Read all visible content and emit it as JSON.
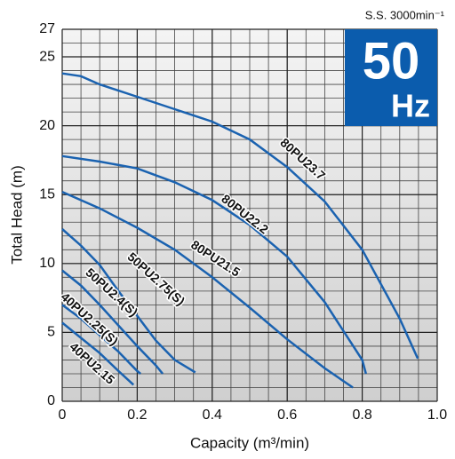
{
  "chart_data": {
    "type": "line",
    "subtitle": "S.S. 3000min⁻¹",
    "badge_number": "50",
    "badge_unit": "Hz",
    "x_label": "Capacity (m³/min)",
    "y_label": "Total Head (m)",
    "xlim": [
      0,
      1.0
    ],
    "ylim": [
      0,
      27
    ],
    "xticks": [
      0,
      0.2,
      0.4,
      0.6,
      0.8,
      {
        "value": 1.0,
        "label": "1.0"
      }
    ],
    "yticks": [
      0,
      5,
      10,
      15,
      20,
      25,
      27
    ],
    "grid": true,
    "color": "#1a62b0",
    "series": [
      {
        "name": "80PU23.7",
        "x": [
          0,
          0.05,
          0.1,
          0.2,
          0.3,
          0.4,
          0.5,
          0.6,
          0.7,
          0.8,
          0.9,
          0.948
        ],
        "values": [
          23.8,
          23.6,
          23.0,
          22.1,
          21.2,
          20.3,
          19.0,
          17.0,
          14.5,
          11.0,
          6.0,
          3.1
        ]
      },
      {
        "name": "80PU22.2",
        "x": [
          0,
          0.1,
          0.2,
          0.3,
          0.4,
          0.5,
          0.6,
          0.7,
          0.8,
          0.81
        ],
        "values": [
          17.8,
          17.4,
          16.9,
          15.9,
          14.6,
          12.8,
          10.5,
          7.2,
          3.0,
          2.0
        ]
      },
      {
        "name": "80PU21.5",
        "x": [
          0,
          0.1,
          0.2,
          0.3,
          0.4,
          0.5,
          0.6,
          0.7,
          0.775
        ],
        "values": [
          15.2,
          14.0,
          12.6,
          11.0,
          9.0,
          6.8,
          4.5,
          2.4,
          1.0
        ]
      },
      {
        "name": "50PU2.75(S)",
        "x": [
          0,
          0.05,
          0.1,
          0.15,
          0.2,
          0.25,
          0.3,
          0.355
        ],
        "values": [
          12.5,
          11.3,
          9.9,
          8.0,
          6.2,
          4.4,
          3.0,
          2.1
        ]
      },
      {
        "name": "50PU2.4(S)",
        "x": [
          0,
          0.05,
          0.1,
          0.15,
          0.2,
          0.25,
          0.268
        ],
        "values": [
          9.5,
          8.4,
          7.0,
          5.5,
          4.0,
          2.6,
          2.0
        ]
      },
      {
        "name": "40PU2.25(S)",
        "x": [
          0,
          0.05,
          0.1,
          0.15,
          0.2,
          0.209
        ],
        "values": [
          7.0,
          6.0,
          4.8,
          3.6,
          2.2,
          2.0
        ]
      },
      {
        "name": "40PU2.15",
        "x": [
          0,
          0.05,
          0.1,
          0.15,
          0.19
        ],
        "values": [
          5.7,
          4.6,
          3.5,
          2.2,
          1.2
        ]
      }
    ]
  }
}
